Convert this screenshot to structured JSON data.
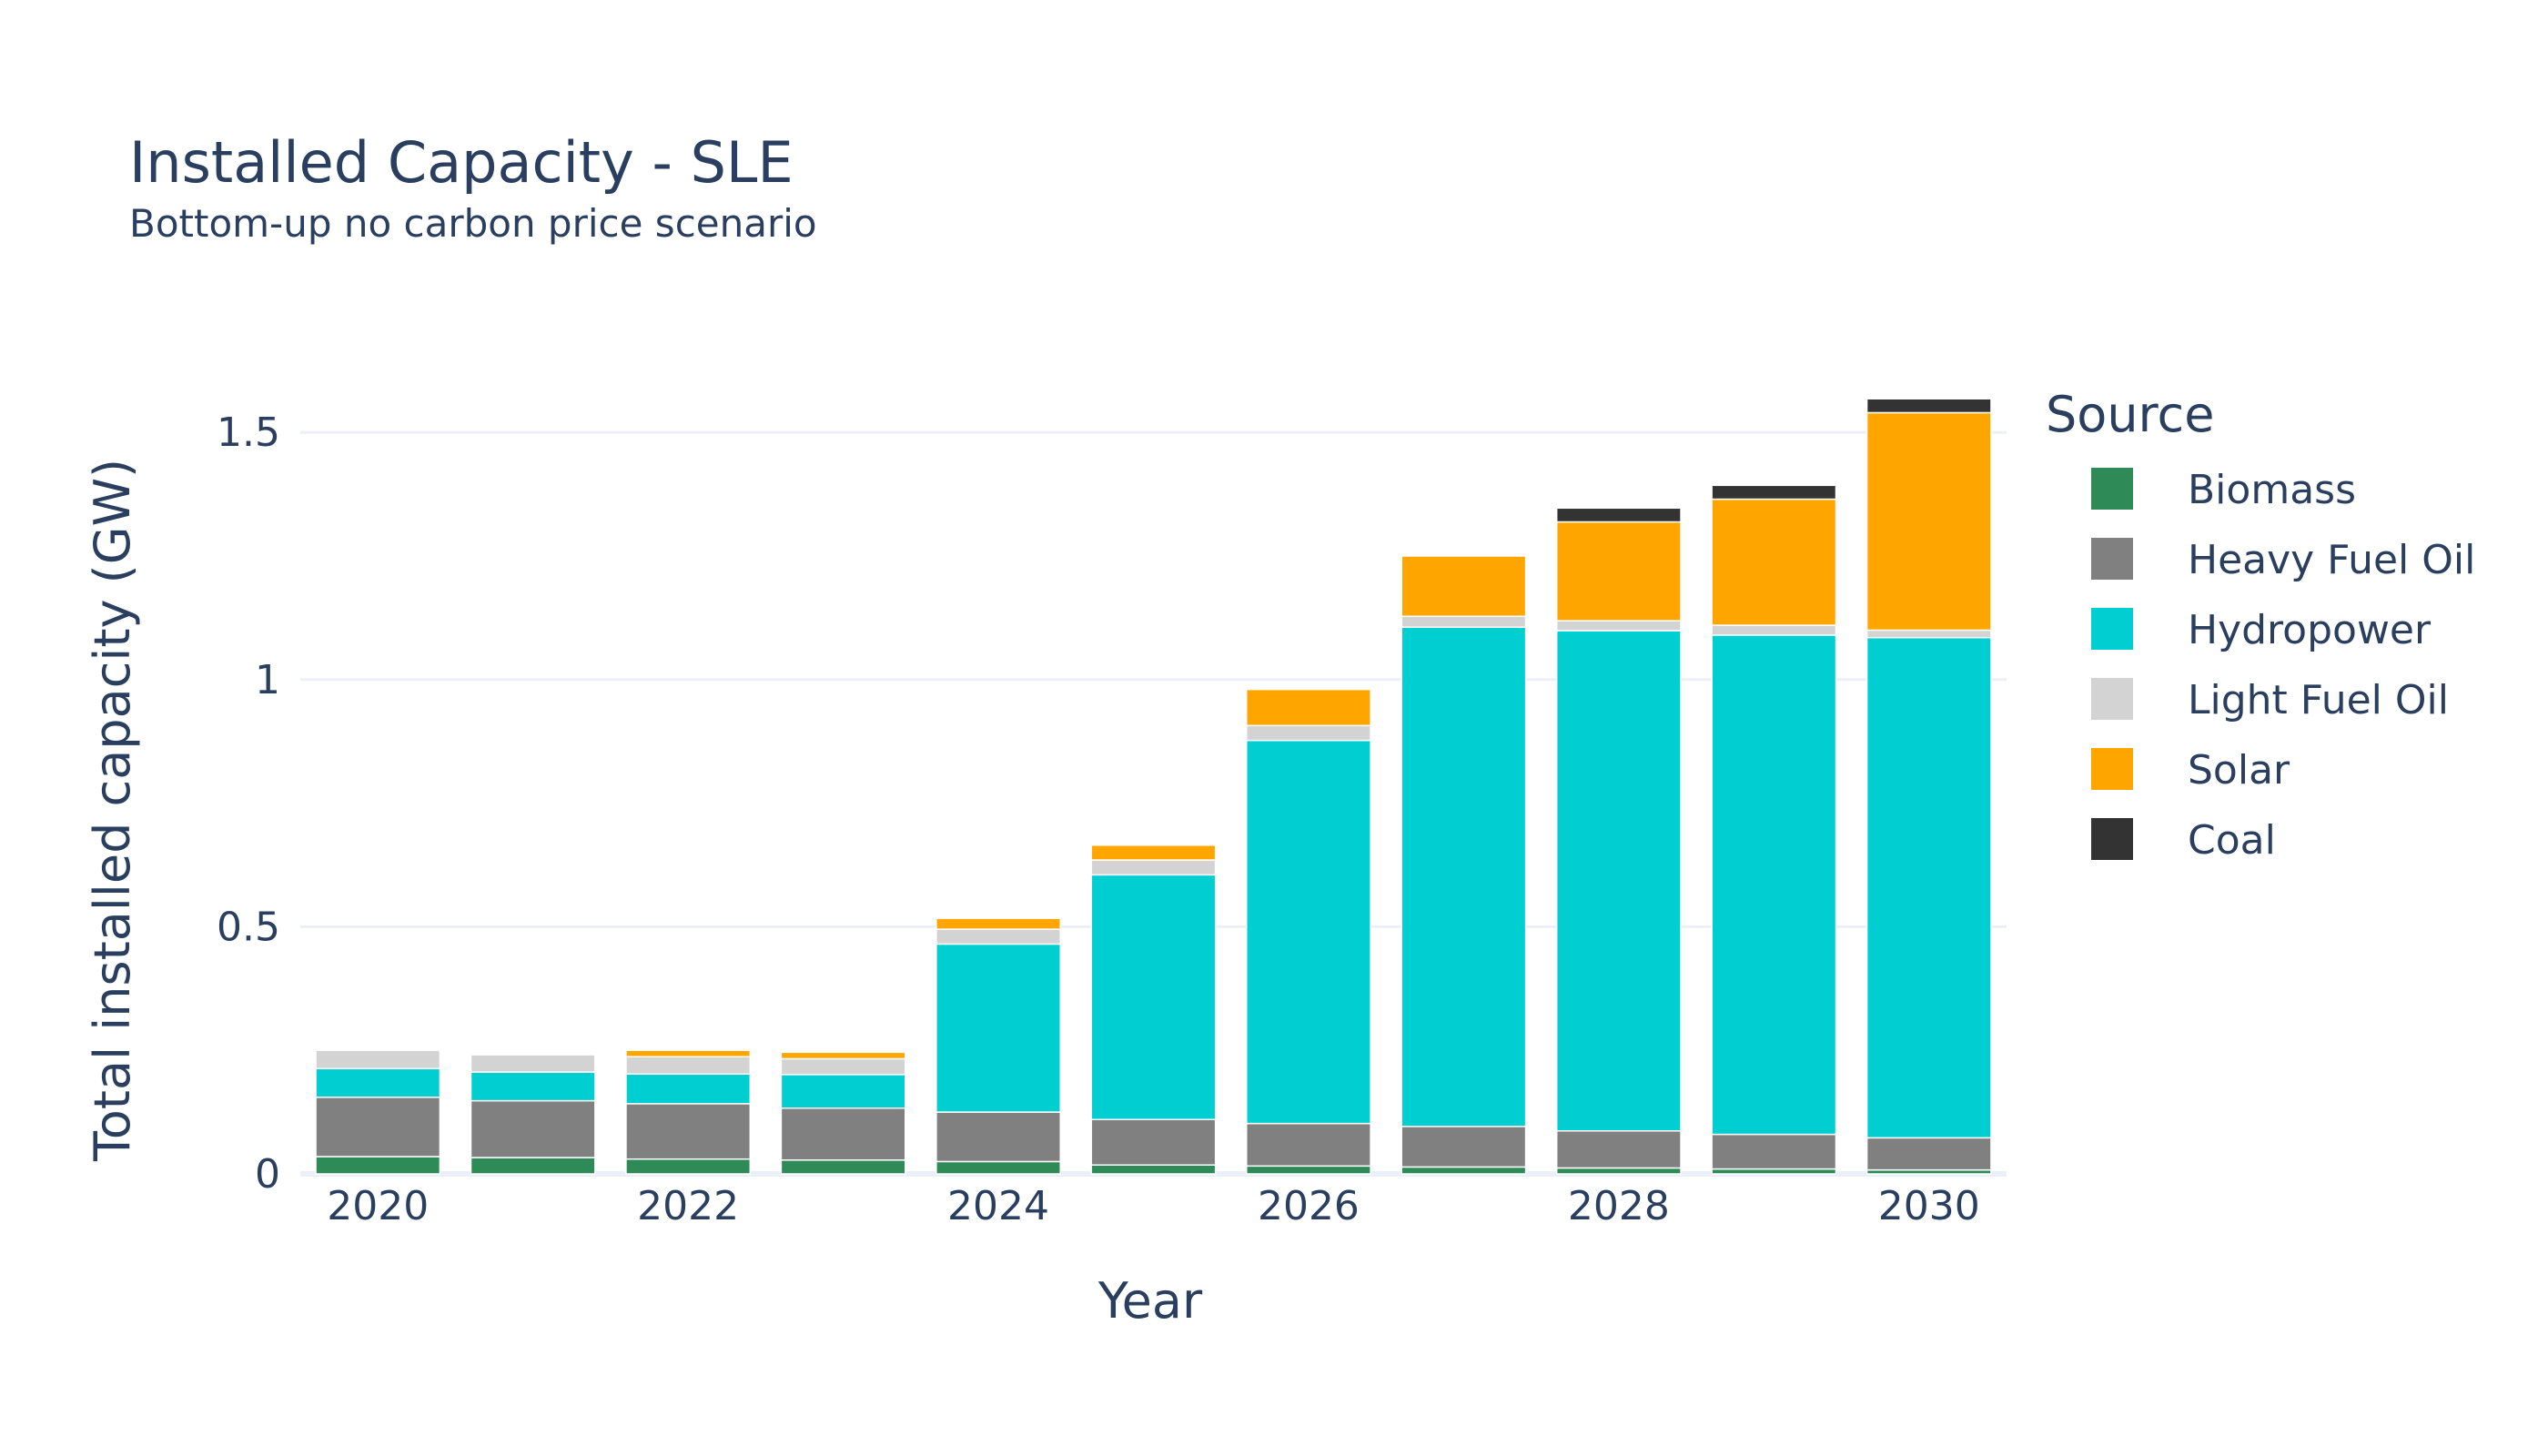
{
  "chart_data": {
    "type": "bar",
    "stacked": true,
    "title": "Installed Capacity - SLE",
    "subtitle": "Bottom-up no carbon price scenario",
    "xlabel": "Year",
    "ylabel": "Total installed capacity (GW)",
    "ylim": [
      0,
      1.62
    ],
    "yticks": [
      0,
      0.5,
      1,
      1.5
    ],
    "ytick_labels": [
      "0",
      "0.5",
      "1",
      "1.5"
    ],
    "xticks": [
      2020,
      2022,
      2024,
      2026,
      2028,
      2030
    ],
    "grid": true,
    "legend_title": "Source",
    "legend_position": "right",
    "x": [
      2020,
      2021,
      2022,
      2023,
      2024,
      2025,
      2026,
      2027,
      2028,
      2029,
      2030
    ],
    "series": [
      {
        "name": "Biomass",
        "color": "#2e8b57",
        "values": [
          0.035,
          0.033,
          0.03,
          0.028,
          0.025,
          0.018,
          0.016,
          0.014,
          0.012,
          0.01,
          0.008
        ]
      },
      {
        "name": "Heavy Fuel Oil",
        "color": "#808080",
        "values": [
          0.12,
          0.115,
          0.112,
          0.105,
          0.1,
          0.092,
          0.086,
          0.082,
          0.075,
          0.07,
          0.065
        ]
      },
      {
        "name": "Hydropower",
        "color": "#00ced1",
        "values": [
          0.058,
          0.058,
          0.06,
          0.068,
          0.34,
          0.495,
          0.775,
          1.01,
          1.012,
          1.01,
          1.012
        ]
      },
      {
        "name": "Light Fuel Oil",
        "color": "#d3d3d3",
        "values": [
          0.037,
          0.035,
          0.035,
          0.032,
          0.03,
          0.03,
          0.03,
          0.022,
          0.02,
          0.02,
          0.015
        ]
      },
      {
        "name": "Solar",
        "color": "#ffa500",
        "values": [
          0,
          0,
          0.013,
          0.013,
          0.022,
          0.03,
          0.073,
          0.122,
          0.2,
          0.255,
          0.44
        ]
      },
      {
        "name": "Coal",
        "color": "#333333",
        "values": [
          0,
          0,
          0,
          0,
          0,
          0,
          0,
          0,
          0.028,
          0.028,
          0.028
        ]
      }
    ]
  }
}
